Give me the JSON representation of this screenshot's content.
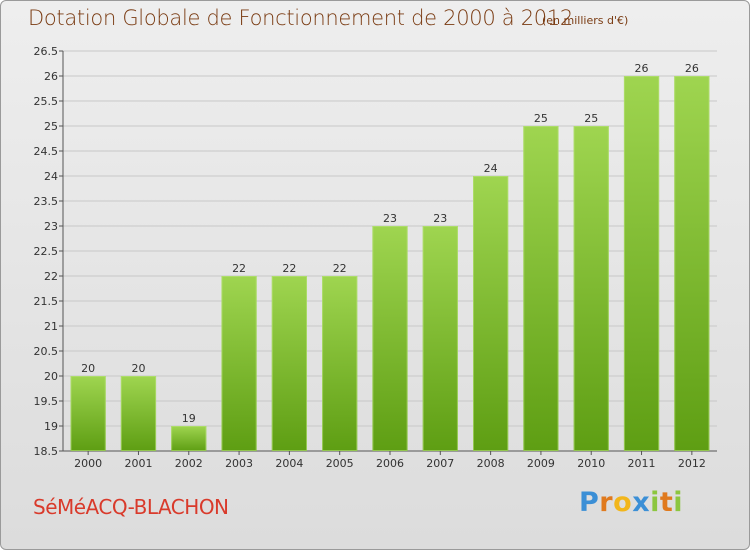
{
  "header": {
    "title": "Dotation Globale de Fonctionnement de 2000 à 2012",
    "subtitle": "(en milliers d'€)"
  },
  "footer": {
    "commune": "SéMéACQ-BLACHON",
    "logo_letters": [
      "P",
      "r",
      "o",
      "x",
      "i",
      "t",
      "i"
    ],
    "logo_colors": [
      "#3b8fd6",
      "#e07a1e",
      "#f2b61b",
      "#3b8fd6",
      "#8cc63f",
      "#e07a1e",
      "#8cc63f"
    ]
  },
  "colors": {
    "bar_top": "#9fd550",
    "bar_bottom": "#5e9e13",
    "grid": "#c8c8c8",
    "title": "#7a3b12",
    "commune": "#d93a2b"
  },
  "chart_data": {
    "type": "bar",
    "title": "Dotation Globale de Fonctionnement de 2000 à 2012",
    "subtitle": "(en milliers d'€)",
    "xlabel": "",
    "ylabel": "",
    "categories": [
      "2000",
      "2001",
      "2002",
      "2003",
      "2004",
      "2005",
      "2006",
      "2007",
      "2008",
      "2009",
      "2010",
      "2011",
      "2012"
    ],
    "values": [
      20,
      20,
      19,
      22,
      22,
      22,
      23,
      23,
      24,
      25,
      25,
      26,
      26
    ],
    "ylim": [
      18.5,
      26.5
    ],
    "yticks": [
      "18.5",
      "19",
      "19.5",
      "20",
      "20.5",
      "21",
      "21.5",
      "22",
      "22.5",
      "23",
      "23.5",
      "24",
      "24.5",
      "25",
      "25.5",
      "26",
      "26.5"
    ],
    "grid": true,
    "legend": "none"
  }
}
